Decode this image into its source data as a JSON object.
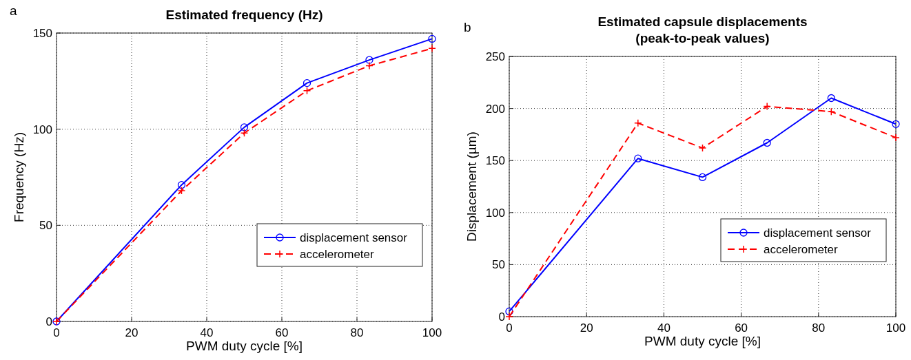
{
  "chart_data": [
    {
      "type": "line",
      "title": "Estimated frequency (Hz)",
      "xlabel": "PWM duty cycle [%]",
      "ylabel": "Frequency (Hz)",
      "annotations": [
        "a"
      ],
      "x": [
        0,
        33.3,
        50,
        66.7,
        83.3,
        100
      ],
      "xlim": [
        0,
        100
      ],
      "xticks": [
        0,
        20,
        40,
        60,
        80,
        100
      ],
      "ylim": [
        0,
        150
      ],
      "yticks": [
        0,
        50,
        100,
        150
      ],
      "grid": true,
      "legend": "bottom right",
      "series": [
        {
          "name": "displacement sensor",
          "color": "#0000ff",
          "marker": "circle",
          "line_style": "solid",
          "values": [
            0,
            71,
            101,
            124,
            136,
            147
          ]
        },
        {
          "name": "accelerometer",
          "color": "#ff0000",
          "marker": "cross",
          "line_style": "dashed",
          "values": [
            0,
            68,
            98,
            120,
            133,
            142
          ]
        }
      ]
    },
    {
      "type": "line",
      "title": "Estimated capsule displacements\n(peak-to-peak values)",
      "xlabel": "PWM duty cycle [%]",
      "ylabel": "Displacement (µm)",
      "annotations": [
        "b"
      ],
      "x": [
        0,
        33.3,
        50,
        66.7,
        83.3,
        100
      ],
      "xlim": [
        0,
        100
      ],
      "xticks": [
        0,
        20,
        40,
        60,
        80,
        100
      ],
      "ylim": [
        0,
        250
      ],
      "yticks": [
        0,
        50,
        100,
        150,
        200,
        250
      ],
      "grid": true,
      "legend": "bottom right",
      "series": [
        {
          "name": "displacement sensor",
          "color": "#0000ff",
          "marker": "circle",
          "line_style": "solid",
          "values": [
            5,
            152,
            134,
            167,
            210,
            185
          ]
        },
        {
          "name": "accelerometer",
          "color": "#ff0000",
          "marker": "cross",
          "line_style": "dashed",
          "values": [
            0,
            186,
            162,
            202,
            197,
            172
          ]
        }
      ]
    }
  ]
}
